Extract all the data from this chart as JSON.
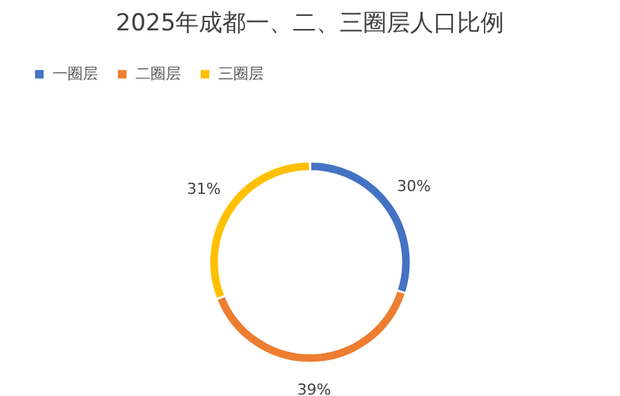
{
  "chart_data": {
    "type": "donut",
    "title": "2025年成都一、二、三圈层人口比例",
    "categories": [
      "一圈层",
      "二圈层",
      "三圈层"
    ],
    "values": [
      30,
      39,
      31
    ],
    "colors": [
      "#4472c4",
      "#ed7d31",
      "#ffc000"
    ],
    "value_labels": [
      "30%",
      "39%",
      "31%"
    ],
    "legend": "top"
  }
}
